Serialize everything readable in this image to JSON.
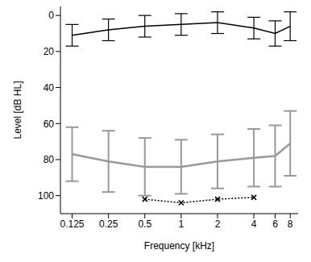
{
  "chart_data": {
    "type": "line",
    "x_label": "Frequency [kHz]",
    "y_label": "Level [dB HL]",
    "x": [
      0.125,
      0.25,
      0.5,
      1,
      2,
      4,
      6,
      8
    ],
    "xlim": [
      0.1,
      9.3
    ],
    "xticks": [
      0.125,
      0.25,
      0.5,
      1,
      2,
      4,
      6,
      8
    ],
    "log": "x",
    "ylim": [
      -5,
      110
    ],
    "yticks": [
      0,
      20,
      40,
      60,
      80,
      100
    ],
    "grid": false,
    "series": [
      {
        "color": "#000000",
        "marker": "none",
        "line_style": "solid",
        "values": [
          11,
          8,
          6,
          5,
          4,
          7,
          10,
          6
        ],
        "errors": [
          6,
          6,
          6,
          6,
          6,
          6,
          7,
          8
        ]
      },
      {
        "color": "#999999",
        "marker": "none",
        "line_style": "solid",
        "values": [
          77,
          81,
          84,
          84,
          81,
          79,
          78,
          71
        ],
        "errors": [
          15,
          17,
          16,
          15,
          15,
          16,
          17,
          18
        ]
      },
      {
        "color": "#000000",
        "marker": "x",
        "line_style": "dotted",
        "values": [
          null,
          null,
          102,
          104,
          102,
          101,
          null,
          null
        ]
      }
    ]
  }
}
